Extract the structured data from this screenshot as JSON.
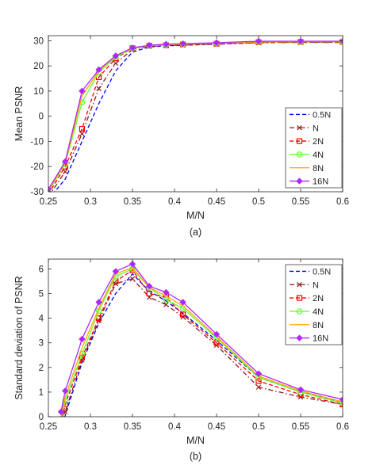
{
  "chart_data": [
    {
      "type": "line",
      "caption": "(a)",
      "xlabel": "M/N",
      "ylabel": "Mean PSNR",
      "xlim": [
        0.25,
        0.6
      ],
      "ylim": [
        -30,
        32
      ],
      "xticks": [
        0.25,
        0.3,
        0.35,
        0.4,
        0.45,
        0.5,
        0.55,
        0.6
      ],
      "yticks": [
        -30,
        -20,
        -10,
        0,
        10,
        20,
        30
      ],
      "x": [
        0.25,
        0.27,
        0.29,
        0.31,
        0.33,
        0.35,
        0.37,
        0.39,
        0.41,
        0.45,
        0.5,
        0.55,
        0.6
      ],
      "legend_position": "bottom-right",
      "series": [
        {
          "name": "0.5N",
          "color": "#0000ff",
          "style": "dashed",
          "marker": "none",
          "values": [
            -33,
            -25,
            -10,
            5,
            18,
            25.5,
            27.5,
            28,
            28.2,
            28.6,
            29.3,
            29.4,
            29.4
          ]
        },
        {
          "name": "N",
          "color": "#8b1a1a",
          "style": "dashdot",
          "marker": "x",
          "values": [
            -32,
            -22,
            -7,
            11,
            21,
            26.5,
            27.8,
            28,
            28.3,
            28.6,
            29.2,
            29.3,
            29.3
          ]
        },
        {
          "name": "2N",
          "color": "#ff0000",
          "style": "dashed",
          "marker": "square",
          "values": [
            -31,
            -20,
            -5,
            15.5,
            23,
            27,
            28,
            28.2,
            28.5,
            28.8,
            29.4,
            29.5,
            29.5
          ]
        },
        {
          "name": "4N",
          "color": "#66ff33",
          "style": "solid",
          "marker": "circle",
          "values": [
            -30,
            -19,
            5.5,
            17.5,
            23.5,
            27,
            28,
            28.4,
            28.6,
            29,
            29.5,
            29.6,
            29.6
          ]
        },
        {
          "name": "8N",
          "color": "#ffa500",
          "style": "solid",
          "marker": "none",
          "values": [
            -29.5,
            -18.5,
            8,
            18,
            24,
            27,
            28,
            28.4,
            28.6,
            29,
            29.5,
            29.6,
            29.6
          ]
        },
        {
          "name": "16N",
          "color": "#b026ff",
          "style": "solid",
          "marker": "diamond",
          "values": [
            -29,
            -18,
            10,
            18.5,
            24,
            27.2,
            28.2,
            28.6,
            28.8,
            29.2,
            29.8,
            29.8,
            29.8
          ]
        }
      ]
    },
    {
      "type": "line",
      "caption": "(b)",
      "xlabel": "M/N",
      "ylabel": "Standard deviation of PSNR",
      "xlim": [
        0.25,
        0.6
      ],
      "ylim": [
        0,
        6.4
      ],
      "xticks": [
        0.25,
        0.3,
        0.35,
        0.4,
        0.45,
        0.5,
        0.55,
        0.6
      ],
      "yticks": [
        0,
        1,
        2,
        3,
        4,
        5,
        6
      ],
      "x": [
        0.265,
        0.27,
        0.29,
        0.31,
        0.33,
        0.35,
        0.37,
        0.39,
        0.41,
        0.45,
        0.5,
        0.55,
        0.6
      ],
      "legend_position": "top-right",
      "series": [
        {
          "name": "0.5N",
          "color": "#0000ff",
          "style": "dashed",
          "marker": "none",
          "values": [
            -0.8,
            0.05,
            2.2,
            3.8,
            5.0,
            5.8,
            5.1,
            4.7,
            4.2,
            3.1,
            1.6,
            1.0,
            0.6
          ]
        },
        {
          "name": "N",
          "color": "#8b1a1a",
          "style": "dashdot",
          "marker": "x",
          "values": [
            -0.6,
            0.2,
            2.3,
            3.9,
            5.4,
            5.6,
            4.85,
            4.55,
            4.05,
            2.9,
            1.2,
            0.8,
            0.5
          ]
        },
        {
          "name": "2N",
          "color": "#ff0000",
          "style": "dashed",
          "marker": "square",
          "values": [
            -0.3,
            0.5,
            2.4,
            4.0,
            5.5,
            5.95,
            5.0,
            4.85,
            4.15,
            3.0,
            1.45,
            0.9,
            0.5
          ]
        },
        {
          "name": "4N",
          "color": "#66ff33",
          "style": "solid",
          "marker": "circle",
          "values": [
            -0.1,
            0.65,
            2.55,
            4.3,
            5.7,
            6.0,
            5.25,
            4.75,
            4.4,
            3.2,
            1.6,
            1.0,
            0.55
          ]
        },
        {
          "name": "8N",
          "color": "#ffa500",
          "style": "solid",
          "marker": "none",
          "values": [
            0.0,
            0.8,
            2.8,
            4.4,
            5.8,
            6.05,
            5.25,
            4.9,
            4.5,
            3.25,
            1.65,
            1.05,
            0.6
          ]
        },
        {
          "name": "16N",
          "color": "#b026ff",
          "style": "solid",
          "marker": "diamond",
          "values": [
            0.2,
            1.05,
            3.15,
            4.65,
            5.9,
            6.2,
            5.3,
            5.05,
            4.65,
            3.35,
            1.75,
            1.1,
            0.7
          ]
        }
      ]
    }
  ]
}
